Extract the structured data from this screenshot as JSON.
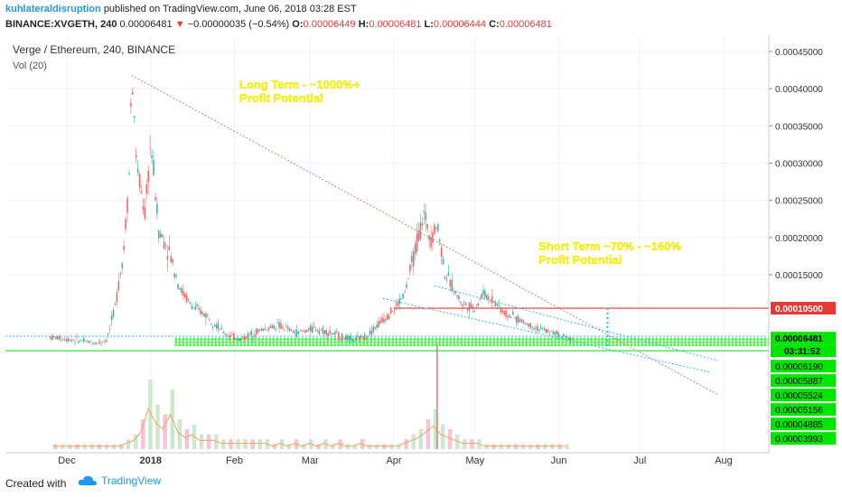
{
  "header": {
    "author": "kuhlateraldisruption",
    "published_text": "published on TradingView.com, June 06, 2018 03:28 EST",
    "symbol": "BINANCE:XVGETH, 240",
    "last": "0.00006481",
    "change_arrow": "▼",
    "change": "−0.00000035 (−0.54%)",
    "o_label": "O:",
    "o_value": "0.00006449",
    "h_label": "H:",
    "h_value": "0.00006481",
    "l_label": "L:",
    "l_value": "0.00006444",
    "c_label": "C:",
    "c_value": "0.00006481"
  },
  "chart_data": {
    "type": "candlestick",
    "title": "Verge / Ethereum, 240, BINANCE",
    "indicator": "Vol (20)",
    "x_ticks": [
      "Dec",
      "2018",
      "Feb",
      "Mar",
      "Apr",
      "May",
      "Jun",
      "Jul",
      "Aug"
    ],
    "y_ticks": [
      "0.00045000",
      "0.00040000",
      "0.00035000",
      "0.00030000",
      "0.00025000",
      "0.00020000",
      "0.00015000"
    ],
    "ylim": [
      3e-05,
      0.00046
    ],
    "price_path": [
      {
        "t": "Nov 25",
        "v": 6.6e-05
      },
      {
        "t": "Dec 05",
        "v": 6.2e-05
      },
      {
        "t": "Dec 12",
        "v": 5.8e-05
      },
      {
        "t": "Dec 16",
        "v": 6.3e-05
      },
      {
        "t": "Dec 19",
        "v": 0.00011
      },
      {
        "t": "Dec 22",
        "v": 0.00018
      },
      {
        "t": "Dec 24",
        "v": 0.00028
      },
      {
        "t": "Dec 25",
        "v": 0.00042
      },
      {
        "t": "Dec 27",
        "v": 0.00029
      },
      {
        "t": "Dec 30",
        "v": 0.00023
      },
      {
        "t": "Jan 01",
        "v": 0.00033
      },
      {
        "t": "Jan 04",
        "v": 0.00021
      },
      {
        "t": "Jan 08",
        "v": 0.00018
      },
      {
        "t": "Jan 12",
        "v": 0.00013
      },
      {
        "t": "Jan 17",
        "v": 0.000105
      },
      {
        "t": "Jan 22",
        "v": 9.5e-05
      },
      {
        "t": "Jan 28",
        "v": 7.2e-05
      },
      {
        "t": "Feb 03",
        "v": 6.3e-05
      },
      {
        "t": "Feb 10",
        "v": 7.5e-05
      },
      {
        "t": "Feb 17",
        "v": 8.2e-05
      },
      {
        "t": "Feb 24",
        "v": 7.2e-05
      },
      {
        "t": "Mar 03",
        "v": 7.8e-05
      },
      {
        "t": "Mar 10",
        "v": 7e-05
      },
      {
        "t": "Mar 17",
        "v": 6.2e-05
      },
      {
        "t": "Mar 22",
        "v": 6.8e-05
      },
      {
        "t": "Mar 28",
        "v": 9e-05
      },
      {
        "t": "Apr 02",
        "v": 0.000108
      },
      {
        "t": "Apr 05",
        "v": 0.000125
      },
      {
        "t": "Apr 08",
        "v": 0.00017
      },
      {
        "t": "Apr 12",
        "v": 0.00023
      },
      {
        "t": "Apr 15",
        "v": 0.0002
      },
      {
        "t": "Apr 17",
        "v": 0.00022
      },
      {
        "t": "Apr 20",
        "v": 0.00015
      },
      {
        "t": "Apr 26",
        "v": 0.000112
      },
      {
        "t": "May 01",
        "v": 0.000105
      },
      {
        "t": "May 04",
        "v": 0.000125
      },
      {
        "t": "May 08",
        "v": 0.000115
      },
      {
        "t": "May 12",
        "v": 9.8e-05
      },
      {
        "t": "May 18",
        "v": 8.8e-05
      },
      {
        "t": "May 24",
        "v": 7.8e-05
      },
      {
        "t": "May 30",
        "v": 7.2e-05
      },
      {
        "t": "Jun 03",
        "v": 6.6e-05
      },
      {
        "t": "Jun 06",
        "v": 6.48e-05
      }
    ],
    "volume_profile": [
      1,
      1,
      1,
      1,
      1,
      1,
      1,
      1,
      1,
      1,
      2,
      3,
      6,
      14,
      9,
      7,
      12,
      6,
      4,
      5,
      3,
      3,
      3,
      2,
      2,
      2,
      2,
      2,
      2,
      2,
      1,
      2,
      1,
      2,
      1,
      2,
      1,
      2,
      1,
      2,
      1,
      1,
      2,
      1,
      1,
      1,
      1,
      1,
      2,
      3,
      4,
      6,
      8,
      5,
      4,
      3,
      2,
      2,
      2,
      1,
      1,
      1,
      1,
      1,
      1,
      1,
      1,
      1,
      1,
      1,
      1
    ],
    "horizontal_levels": [
      {
        "price": "0.00010500",
        "color": "#e53935"
      },
      {
        "price": "0.00006481",
        "color": "#26c6da"
      }
    ],
    "last_price_label": "0.00006481",
    "countdown": "03:31:52",
    "support_levels": [
      "0.00006190",
      "0.00005887",
      "0.00005524",
      "0.00005156",
      "0.00004885",
      "0.00003993"
    ],
    "annotations": [
      {
        "line1": "Long Term - ~1000%+",
        "line2": "Profit Potential"
      },
      {
        "line1": "Short Term ~70% - ~160%",
        "line2": "Profit Potential"
      }
    ],
    "colors": {
      "up": "#26a69a",
      "down": "#ef5350",
      "support": "#00e600",
      "resistance": "#e53935",
      "channel": "#26c6da",
      "annotation_text": "#ffff00"
    }
  },
  "footer": {
    "created_with": "Created with",
    "brand": "TradingView"
  }
}
